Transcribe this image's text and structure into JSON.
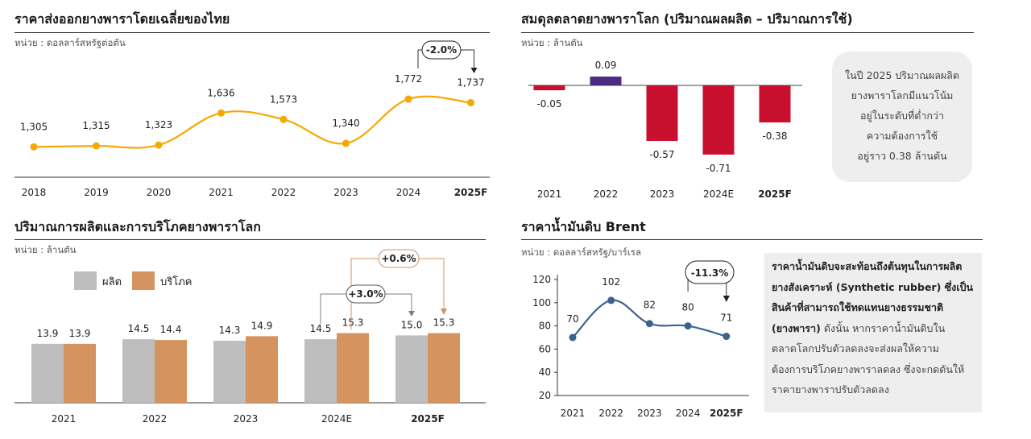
{
  "colors": {
    "orange_line": "#F5A800",
    "dark_purple": "#4B2C85",
    "crimson": "#C8102E",
    "gray_bar": "#BEBEBE",
    "tan_bar": "#D4935F",
    "blue_line": "#3C6290",
    "note_bg": "#EEEEEE"
  },
  "panels": {
    "price": {
      "title": "ราคาส่งออกยางพาราโดยเฉลี่ยของไทย",
      "unit": "หน่วย : ดอลลาร์สหรัฐต่อตัน",
      "change_label": "-2.0%"
    },
    "balance": {
      "title": "สมดุลตลาดยางพาราโลก (ปริมาณผลผลิต – ปริมาณการใช้)",
      "unit": "หน่วย : ล้านตัน",
      "note_lines": [
        "ในปี 2025 ปริมาณผลผลิต",
        "ยางพาราโลกมีแนวโน้ม",
        "อยู่ในระดับที่ต่ำกว่า",
        "ความต้องการใช้",
        "อยู่ราว 0.38 ล้านตัน"
      ]
    },
    "production": {
      "title": "ปริมาณการผลิตและการบริโภคยางพาราโลก",
      "unit": "หน่วย : ล้านตัน",
      "change_prod": "+3.0%",
      "change_cons": "+0.6%"
    },
    "brent": {
      "title": "ราคาน้ำมันดิบ Brent",
      "unit": "หน่วย : ดอลลาร์สหรัฐ/บาร์เรล",
      "change_label": "-11.3%",
      "note_bold": [
        "ราคาน้ำมันดิบจะสะท้อนถึงต้นทุนในการผลิต",
        "ยางสังเคราะห์ (Synthetic rubber) ซึ่งเป็น",
        "สินค้าที่สามารถใช้ทดแทนยางธรรมชาติ"
      ],
      "note_mixed_bold": "(ยางพารา)",
      "note_mixed_rest": " ดังนั้น หากราคาน้ำมันดิบใน",
      "note_rest": [
        "ตลาดโลกปรับตัวลดลงจะส่งผลให้ความ",
        "ต้องการบริโภคยางพาราลดลง ซึ่งจะกดดันให้",
        "ราคายางพาราปรับตัวลดลง"
      ]
    }
  },
  "chart_data": [
    {
      "id": "price",
      "type": "line",
      "categories": [
        "2018",
        "2019",
        "2020",
        "2021",
        "2022",
        "2023",
        "2024",
        "2025F"
      ],
      "values": [
        1305,
        1315,
        1323,
        1636,
        1573,
        1340,
        1772,
        1737
      ],
      "value_labels": [
        "1,305",
        "1,315",
        "1,323",
        "1,636",
        "1,573",
        "1,340",
        "1,772",
        "1,737"
      ],
      "bold_categories": [
        "2025F"
      ],
      "annotation": "-2.0%"
    },
    {
      "id": "balance",
      "type": "bar",
      "categories": [
        "2021",
        "2022",
        "2023",
        "2024E",
        "2025F"
      ],
      "values": [
        -0.05,
        0.09,
        -0.57,
        -0.71,
        -0.38
      ],
      "value_labels": [
        "-0.05",
        "0.09",
        "-0.57",
        "-0.71",
        "-0.38"
      ],
      "bold_categories": [
        "2025F"
      ]
    },
    {
      "id": "production",
      "type": "bar",
      "categories": [
        "2021",
        "2022",
        "2023",
        "2024E",
        "2025F"
      ],
      "series": [
        {
          "name": "ผลิต",
          "values": [
            13.9,
            14.5,
            14.3,
            14.5,
            15.0
          ],
          "labels": [
            "13.9",
            "14.5",
            "14.3",
            "14.5",
            "15.0"
          ]
        },
        {
          "name": "บริโภค",
          "values": [
            13.9,
            14.4,
            14.9,
            15.3,
            15.3
          ],
          "labels": [
            "13.9",
            "14.4",
            "14.9",
            "15.3",
            "15.3"
          ]
        }
      ],
      "bold_categories": [
        "2025F"
      ],
      "annotations": [
        "+3.0%",
        "+0.6%"
      ]
    },
    {
      "id": "brent",
      "type": "line",
      "categories": [
        "2021",
        "2022",
        "2023",
        "2024",
        "2025F"
      ],
      "values": [
        70,
        102,
        82,
        80,
        71
      ],
      "value_labels": [
        "70",
        "102",
        "82",
        "80",
        "71"
      ],
      "yticks": [
        "120",
        "100",
        "80",
        "60",
        "40",
        "20"
      ],
      "ylim": [
        20,
        120
      ],
      "bold_categories": [
        "2025F"
      ],
      "annotation": "-11.3%"
    }
  ]
}
